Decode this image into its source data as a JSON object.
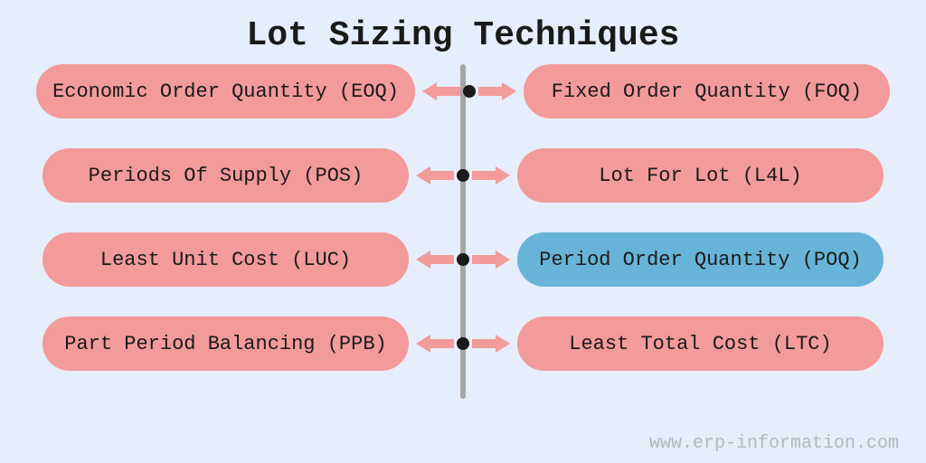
{
  "title": "Lot Sizing Techniques",
  "title_fontsize": 38,
  "background_color": "#e6edfb",
  "text_color": "#1a1a1a",
  "pill_default_color": "#f39a9a",
  "pill_highlight_color": "#67b4d8",
  "pill_text_fontsize": 22,
  "arrow_color": "#f39a9a",
  "node_color": "#1a1a1a",
  "spine_color": "#a6a6a6",
  "spine_height": 370,
  "row_gap": 33,
  "watermark": "www.erp-information.com",
  "watermark_color": "#8b8b8b",
  "watermark_fontsize": 20,
  "rows": [
    {
      "left": {
        "text": "Economic Order Quantity (EOQ)",
        "color": "#f39a9a"
      },
      "right": {
        "text": "Fixed Order Quantity (FOQ)",
        "color": "#f39a9a"
      }
    },
    {
      "left": {
        "text": "Periods Of Supply  (POS)",
        "color": "#f39a9a"
      },
      "right": {
        "text": "Lot For Lot (L4L)",
        "color": "#f39a9a"
      }
    },
    {
      "left": {
        "text": "Least Unit Cost (LUC)",
        "color": "#f39a9a"
      },
      "right": {
        "text": "Period Order Quantity (POQ)",
        "color": "#67b4d8"
      }
    },
    {
      "left": {
        "text": "Part Period Balancing (PPB)",
        "color": "#f39a9a"
      },
      "right": {
        "text": "Least Total Cost (LTC)",
        "color": "#f39a9a"
      }
    }
  ]
}
